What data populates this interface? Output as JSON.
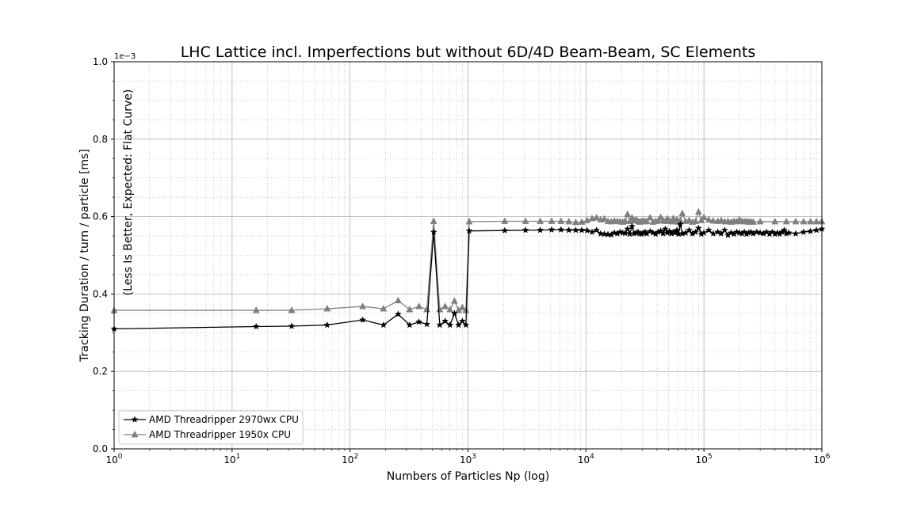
{
  "chart_data": {
    "type": "line",
    "title": "LHC Lattice incl. Imperfections but without 6D/4D Beam-Beam, SC Elements",
    "xlabel": "Numbers of Particles Np (log)",
    "ylabel": "Tracking Duration / turn / particle [ms]",
    "annotation": "(Less Is Better, Expected: Flat Curve)",
    "y_offset_label": "1e−3",
    "xscale": "log",
    "xlim": [
      1,
      1000000
    ],
    "ylim": [
      0.0,
      1.0
    ],
    "y_multiplier": "1e-3",
    "x_tick_labels": [
      {
        "base": "10",
        "exp": "0"
      },
      {
        "base": "10",
        "exp": "1"
      },
      {
        "base": "10",
        "exp": "2"
      },
      {
        "base": "10",
        "exp": "3"
      },
      {
        "base": "10",
        "exp": "4"
      },
      {
        "base": "10",
        "exp": "5"
      },
      {
        "base": "10",
        "exp": "6"
      }
    ],
    "y_ticks": [
      0.0,
      0.2,
      0.4,
      0.6,
      0.8,
      1.0
    ],
    "y_tick_labels": [
      "0.0",
      "0.2",
      "0.4",
      "0.6",
      "0.8",
      "1.0"
    ],
    "grid": "major and minor",
    "legend_position": "lower-left",
    "series": [
      {
        "name": "AMD Threadripper 2970wx CPU",
        "color": "#000000",
        "marker": "star",
        "x": [
          1,
          16,
          32,
          64,
          128,
          192,
          256,
          320,
          384,
          448,
          512,
          576,
          640,
          704,
          768,
          832,
          896,
          960,
          1024,
          2048,
          3072,
          4096,
          5120,
          6144,
          7168,
          8192,
          9216,
          10240,
          11264,
          12288,
          13312,
          14336,
          15360,
          16384,
          17408,
          18432,
          19456,
          20480,
          21504,
          22528,
          23552,
          24576,
          25600,
          26624,
          27648,
          28672,
          29696,
          30720,
          31744,
          32768,
          35000,
          37000,
          39000,
          41000,
          43000,
          45000,
          47000,
          49000,
          51000,
          53000,
          55000,
          57000,
          59000,
          61000,
          63000,
          65536,
          70000,
          75000,
          80000,
          85000,
          90000,
          95000,
          100000,
          110000,
          120000,
          131072,
          140000,
          150000,
          160000,
          170000,
          180000,
          190000,
          200000,
          210000,
          220000,
          230000,
          240000,
          250000,
          262144,
          280000,
          300000,
          320000,
          340000,
          360000,
          380000,
          400000,
          420000,
          440000,
          460000,
          480000,
          500000,
          524288,
          600000,
          700000,
          800000,
          900000,
          1000000
        ],
        "values": [
          0.31,
          0.316,
          0.317,
          0.32,
          0.333,
          0.32,
          0.348,
          0.32,
          0.328,
          0.322,
          0.56,
          0.32,
          0.33,
          0.32,
          0.35,
          0.32,
          0.33,
          0.32,
          0.563,
          0.564,
          0.565,
          0.565,
          0.566,
          0.566,
          0.565,
          0.565,
          0.565,
          0.564,
          0.56,
          0.565,
          0.556,
          0.555,
          0.554,
          0.553,
          0.558,
          0.556,
          0.56,
          0.558,
          0.557,
          0.568,
          0.555,
          0.575,
          0.556,
          0.558,
          0.56,
          0.556,
          0.555,
          0.558,
          0.56,
          0.556,
          0.562,
          0.558,
          0.555,
          0.56,
          0.563,
          0.556,
          0.568,
          0.558,
          0.562,
          0.556,
          0.56,
          0.558,
          0.565,
          0.555,
          0.58,
          0.556,
          0.558,
          0.565,
          0.556,
          0.56,
          0.57,
          0.555,
          0.558,
          0.565,
          0.556,
          0.56,
          0.556,
          0.565,
          0.552,
          0.558,
          0.555,
          0.56,
          0.558,
          0.556,
          0.56,
          0.555,
          0.558,
          0.56,
          0.556,
          0.56,
          0.558,
          0.556,
          0.56,
          0.555,
          0.56,
          0.555,
          0.558,
          0.555,
          0.56,
          0.565,
          0.556,
          0.558,
          0.556,
          0.56,
          0.562,
          0.565,
          0.568
        ]
      },
      {
        "name": "AMD Threadripper 1950x CPU",
        "color": "#808080",
        "marker": "triangle",
        "x": [
          1,
          16,
          32,
          64,
          128,
          192,
          256,
          320,
          384,
          448,
          512,
          576,
          640,
          704,
          768,
          832,
          896,
          960,
          1024,
          2048,
          3072,
          4096,
          5120,
          6144,
          7168,
          8192,
          9216,
          10240,
          11264,
          12288,
          13312,
          14336,
          15360,
          16384,
          17408,
          18432,
          19456,
          20480,
          21504,
          22528,
          23552,
          24576,
          25600,
          26624,
          27648,
          28672,
          29696,
          30720,
          31744,
          32768,
          35000,
          37000,
          39000,
          41000,
          43000,
          45000,
          47000,
          49000,
          51000,
          53000,
          55000,
          57000,
          59000,
          61000,
          63000,
          65536,
          70000,
          75000,
          80000,
          85000,
          90000,
          95000,
          100000,
          110000,
          120000,
          131072,
          140000,
          150000,
          160000,
          170000,
          180000,
          190000,
          200000,
          210000,
          220000,
          230000,
          240000,
          250000,
          262144,
          300000,
          400000,
          500000,
          600000,
          700000,
          800000,
          900000,
          1000000
        ],
        "values": [
          0.358,
          0.358,
          0.358,
          0.362,
          0.368,
          0.362,
          0.383,
          0.36,
          0.368,
          0.36,
          0.588,
          0.36,
          0.368,
          0.36,
          0.382,
          0.358,
          0.365,
          0.358,
          0.587,
          0.588,
          0.588,
          0.588,
          0.588,
          0.588,
          0.587,
          0.585,
          0.586,
          0.59,
          0.595,
          0.597,
          0.592,
          0.594,
          0.588,
          0.587,
          0.589,
          0.588,
          0.587,
          0.586,
          0.588,
          0.606,
          0.588,
          0.597,
          0.59,
          0.592,
          0.588,
          0.586,
          0.588,
          0.589,
          0.587,
          0.588,
          0.597,
          0.586,
          0.588,
          0.589,
          0.598,
          0.59,
          0.588,
          0.594,
          0.589,
          0.587,
          0.595,
          0.588,
          0.592,
          0.586,
          0.59,
          0.608,
          0.588,
          0.59,
          0.586,
          0.588,
          0.612,
          0.59,
          0.598,
          0.592,
          0.589,
          0.588,
          0.59,
          0.587,
          0.588,
          0.586,
          0.588,
          0.587,
          0.592,
          0.588,
          0.587,
          0.588,
          0.586,
          0.587,
          0.586,
          0.587,
          0.587,
          0.587,
          0.587,
          0.587,
          0.587,
          0.587,
          0.587
        ]
      }
    ]
  }
}
